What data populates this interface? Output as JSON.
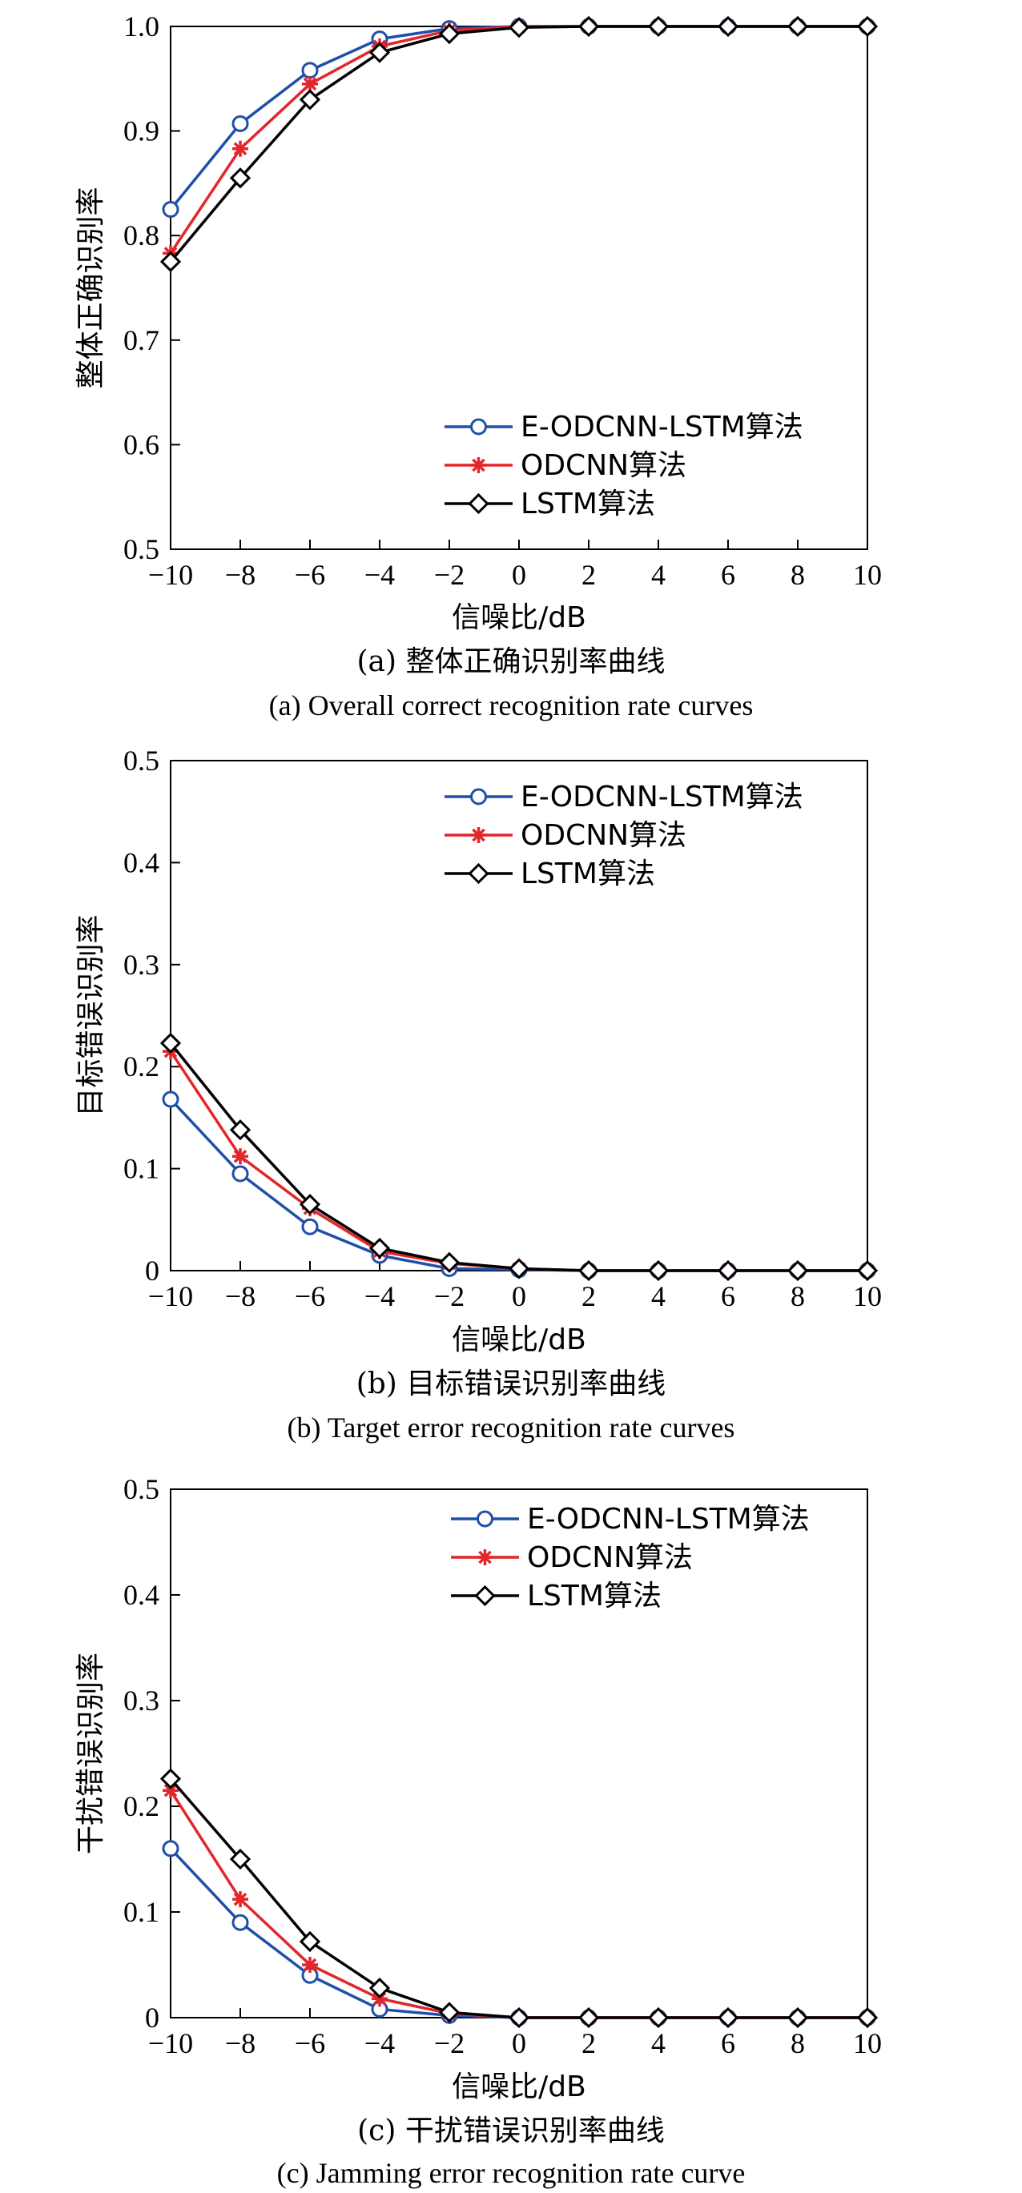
{
  "chart_data": [
    {
      "type": "line",
      "xlabel": "信噪比/dB",
      "ylabel": "整体正确识别率",
      "caption_cn": "(a) 整体正确识别率曲线",
      "caption_en": "(a) Overall correct recognition rate curves",
      "x": [
        -10,
        -8,
        -6,
        -4,
        -2,
        0,
        2,
        4,
        6,
        8,
        10
      ],
      "xlim": [
        -10,
        10
      ],
      "ylim": [
        0.5,
        1.0
      ],
      "yticks": [
        0.5,
        0.6,
        0.7,
        0.8,
        0.9,
        1.0
      ],
      "xticks": [
        -10,
        -8,
        -6,
        -4,
        -2,
        0,
        2,
        4,
        6,
        8,
        10
      ],
      "ytick_labels": [
        "0.5",
        "0.6",
        "0.7",
        "0.8",
        "0.9",
        "1.0"
      ],
      "xtick_labels": [
        "−10",
        "−8",
        "−6",
        "−4",
        "−2",
        "0",
        "2",
        "4",
        "6",
        "8",
        "10"
      ],
      "legend_position": "lower-right",
      "grid": false,
      "series": [
        {
          "name": "E-ODCNN-LSTM算法",
          "color": "#1f4fa8",
          "marker": "circle",
          "values": [
            0.825,
            0.907,
            0.958,
            0.988,
            0.998,
            1.0,
            1.0,
            1.0,
            1.0,
            1.0,
            1.0
          ]
        },
        {
          "name": "ODCNN算法",
          "color": "#e3262b",
          "marker": "star",
          "values": [
            0.783,
            0.883,
            0.945,
            0.981,
            0.996,
            1.0,
            1.0,
            1.0,
            1.0,
            1.0,
            1.0
          ]
        },
        {
          "name": "LSTM算法",
          "color": "#000000",
          "marker": "diamond",
          "values": [
            0.775,
            0.855,
            0.93,
            0.975,
            0.993,
            0.999,
            1.0,
            1.0,
            1.0,
            1.0,
            1.0
          ]
        }
      ]
    },
    {
      "type": "line",
      "xlabel": "信噪比/dB",
      "ylabel": "目标错误识别率",
      "caption_cn": "(b) 目标错误识别率曲线",
      "caption_en": "(b) Target error recognition rate curves",
      "x": [
        -10,
        -8,
        -6,
        -4,
        -2,
        0,
        2,
        4,
        6,
        8,
        10
      ],
      "xlim": [
        -10,
        10
      ],
      "ylim": [
        0,
        0.5
      ],
      "yticks": [
        0,
        0.1,
        0.2,
        0.3,
        0.4,
        0.5
      ],
      "xticks": [
        -10,
        -8,
        -6,
        -4,
        -2,
        0,
        2,
        4,
        6,
        8,
        10
      ],
      "ytick_labels": [
        "0",
        "0.1",
        "0.2",
        "0.3",
        "0.4",
        "0.5"
      ],
      "xtick_labels": [
        "−10",
        "−8",
        "−6",
        "−4",
        "−2",
        "0",
        "2",
        "4",
        "6",
        "8",
        "10"
      ],
      "legend_position": "top-right",
      "grid": false,
      "series": [
        {
          "name": "E-ODCNN-LSTM算法",
          "color": "#1f4fa8",
          "marker": "circle",
          "values": [
            0.168,
            0.095,
            0.043,
            0.015,
            0.002,
            0.001,
            0,
            0,
            0,
            0,
            0
          ]
        },
        {
          "name": "ODCNN算法",
          "color": "#e3262b",
          "marker": "star",
          "values": [
            0.215,
            0.112,
            0.061,
            0.019,
            0.007,
            0.002,
            0,
            0,
            0,
            0,
            0
          ]
        },
        {
          "name": "LSTM算法",
          "color": "#000000",
          "marker": "diamond",
          "values": [
            0.223,
            0.138,
            0.065,
            0.022,
            0.008,
            0.002,
            0,
            0,
            0,
            0,
            0
          ]
        }
      ]
    },
    {
      "type": "line",
      "xlabel": "信噪比/dB",
      "ylabel": "干扰错误识别率",
      "caption_cn": "(c) 干扰错误识别率曲线",
      "caption_en": "(c) Jamming error recognition rate curve",
      "x": [
        -10,
        -8,
        -6,
        -4,
        -2,
        0,
        2,
        4,
        6,
        8,
        10
      ],
      "xlim": [
        -10,
        10
      ],
      "ylim": [
        0,
        0.5
      ],
      "yticks": [
        0,
        0.1,
        0.2,
        0.3,
        0.4,
        0.5
      ],
      "xticks": [
        -10,
        -8,
        -6,
        -4,
        -2,
        0,
        2,
        4,
        6,
        8,
        10
      ],
      "ytick_labels": [
        "0",
        "0.1",
        "0.2",
        "0.3",
        "0.4",
        "0.5"
      ],
      "xtick_labels": [
        "−10",
        "−8",
        "−6",
        "−4",
        "−2",
        "0",
        "2",
        "4",
        "6",
        "8",
        "10"
      ],
      "legend_position": "top-right",
      "grid": false,
      "series": [
        {
          "name": "E-ODCNN-LSTM算法",
          "color": "#1f4fa8",
          "marker": "circle",
          "values": [
            0.16,
            0.09,
            0.04,
            0.008,
            0.002,
            0,
            0,
            0,
            0,
            0,
            0
          ]
        },
        {
          "name": "ODCNN算法",
          "color": "#e3262b",
          "marker": "star",
          "values": [
            0.215,
            0.112,
            0.05,
            0.018,
            0.004,
            0,
            0,
            0,
            0,
            0,
            0
          ]
        },
        {
          "name": "LSTM算法",
          "color": "#000000",
          "marker": "diamond",
          "values": [
            0.226,
            0.15,
            0.072,
            0.028,
            0.005,
            0,
            0,
            0,
            0,
            0,
            0
          ]
        }
      ]
    }
  ]
}
